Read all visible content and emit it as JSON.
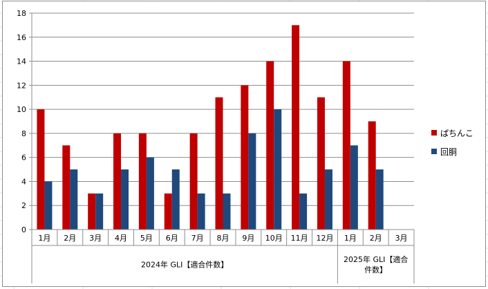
{
  "chart_data": {
    "type": "bar",
    "title": "",
    "xlabel": "",
    "ylabel": "",
    "ylim": [
      0,
      18
    ],
    "yticks": [
      0,
      2,
      4,
      6,
      8,
      10,
      12,
      14,
      16,
      18
    ],
    "grid": true,
    "legend_position": "right",
    "categories": [
      "1月",
      "2月",
      "3月",
      "4月",
      "5月",
      "6月",
      "7月",
      "8月",
      "9月",
      "10月",
      "11月",
      "12月",
      "1月",
      "2月",
      "3月"
    ],
    "groups": [
      {
        "label_lines": [
          "2024年 GLI【適合件数】"
        ],
        "count": 12
      },
      {
        "label_lines": [
          "2025年 GLI【適合",
          "件数】"
        ],
        "count": 3
      }
    ],
    "series": [
      {
        "name": "ぱちんこ",
        "color": "#C00000",
        "values": [
          10,
          7,
          3,
          8,
          8,
          3,
          8,
          11,
          12,
          14,
          17,
          11,
          14,
          9,
          null
        ]
      },
      {
        "name": "回胴",
        "color": "#1F497D",
        "values": [
          4,
          5,
          3,
          5,
          6,
          5,
          3,
          3,
          8,
          10,
          3,
          5,
          7,
          5,
          null
        ]
      }
    ]
  }
}
